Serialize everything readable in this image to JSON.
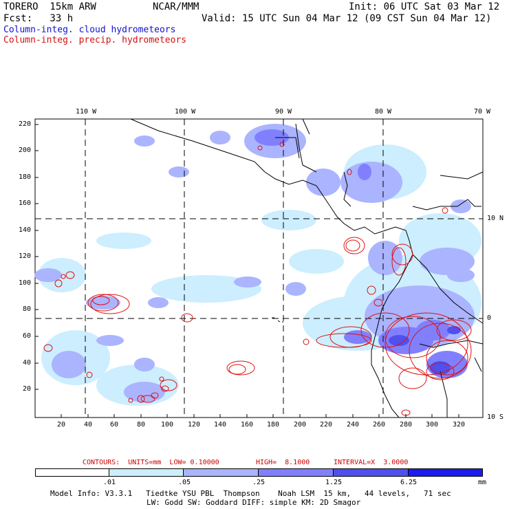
{
  "header": {
    "model": "TORERO  15km ARW",
    "center": "NCAR/MMM",
    "init": "Init: 06 UTC Sat 03 Mar 12",
    "fcst": "Fcst:   33 h",
    "valid": "Valid: 15 UTC Sun 04 Mar 12 (09 CST Sun 04 Mar 12)",
    "field1": "Column-integ. cloud hydrometeors",
    "field2": "Column-integ. precip. hydrometeors"
  },
  "map": {
    "lon_labels": [
      "110 W",
      "100 W",
      "90 W",
      "80 W",
      "70 W"
    ],
    "lat_labels": [
      "10 N",
      "0",
      "10 S"
    ],
    "y_ticks": [
      "220",
      "200",
      "180",
      "160",
      "140",
      "120",
      "100",
      "80",
      "60",
      "40",
      "20"
    ],
    "x_ticks": [
      "20",
      "40",
      "60",
      "80",
      "100",
      "120",
      "140",
      "160",
      "180",
      "200",
      "220",
      "240",
      "260",
      "280",
      "300",
      "320"
    ]
  },
  "contours": {
    "label": "CONTOURS:  UNITS=mm  LOW= 0.10000",
    "high": "HIGH=  8.1000",
    "interval": "INTERVAL=X  3.0000"
  },
  "colorbar": {
    "labels": [
      ".01",
      ".05",
      ".25",
      "1.25",
      "6.25"
    ],
    "unit": "mm",
    "colors": [
      "#ffffff",
      "#cceeff",
      "#aab4ff",
      "#8080ff",
      "#5050ee",
      "#1c1cf0"
    ]
  },
  "footer": {
    "line1": "Model Info: V3.3.1   Tiedtke YSU PBL  Thompson    Noah LSM  15 km,   44 levels,   71 sec",
    "line2": "LW: Godd SW: Goddard DIFF: simple KM: 2D Smagor"
  }
}
